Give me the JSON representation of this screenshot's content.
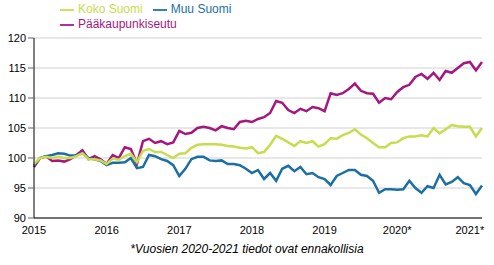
{
  "chart_data": {
    "type": "line",
    "note": "*Vuosien 2020-2021 tiedot ovat ennakollisia",
    "categories": [
      "2015",
      null,
      null,
      null,
      null,
      null,
      null,
      null,
      null,
      null,
      null,
      null,
      "2016",
      null,
      null,
      null,
      null,
      null,
      null,
      null,
      null,
      null,
      null,
      null,
      "2017",
      null,
      null,
      null,
      null,
      null,
      null,
      null,
      null,
      null,
      null,
      null,
      "2018",
      null,
      null,
      null,
      null,
      null,
      null,
      null,
      null,
      null,
      null,
      null,
      "2019",
      null,
      null,
      null,
      null,
      null,
      null,
      null,
      null,
      null,
      null,
      null,
      "2020*",
      null,
      null,
      null,
      null,
      null,
      null,
      null,
      null,
      null,
      null,
      null,
      "2021*",
      null,
      null
    ],
    "series": [
      {
        "name": "Pääkaupunkiseutu",
        "color": "#a6167f",
        "values": [
          98.5,
          100,
          100.3,
          99.5,
          99.6,
          99.4,
          99.8,
          100.5,
          101.3,
          99.8,
          100.3,
          99.8,
          99,
          100.5,
          100,
          101.8,
          101.5,
          99,
          102.8,
          103.2,
          102.5,
          102.8,
          102.3,
          102.6,
          104.5,
          104,
          104.2,
          105,
          105.2,
          105,
          104.6,
          105.3,
          105,
          104.8,
          106,
          106.2,
          106,
          106.5,
          106.8,
          107.5,
          109.5,
          109.2,
          108,
          107.5,
          108.2,
          107.8,
          108.5,
          108.3,
          107.8,
          110.8,
          110.5,
          110.8,
          111.5,
          112.4,
          111.2,
          110.8,
          110.7,
          109.2,
          110,
          109.8,
          111,
          111.8,
          112.2,
          113.5,
          114,
          113.2,
          114.2,
          113,
          114.5,
          114.2,
          115,
          115.8,
          116,
          114.6,
          116
        ]
      },
      {
        "name": "Muu Suomi",
        "color": "#1b6fa3",
        "values": [
          98.8,
          100,
          100.3,
          100.5,
          100.8,
          100.7,
          100.4,
          100.4,
          100.8,
          100,
          99.8,
          99.5,
          98.8,
          99.2,
          99.2,
          99.3,
          100,
          98.3,
          98.5,
          100.5,
          100.3,
          99.8,
          99.5,
          98.8,
          97,
          98.2,
          99.8,
          100.2,
          100.2,
          99.6,
          99.5,
          99.6,
          99,
          99,
          98.8,
          98.2,
          97.5,
          98,
          96.5,
          97.5,
          96.2,
          98.2,
          98.7,
          97.8,
          98.5,
          97.3,
          97.5,
          96.8,
          96.5,
          95.5,
          97,
          97.5,
          98,
          98,
          97.2,
          97,
          96.2,
          94.2,
          94.8,
          94.8,
          94.7,
          94.8,
          96.2,
          95,
          94.2,
          95.3,
          95,
          97.2,
          95.6,
          96,
          96.8,
          95.8,
          95.5,
          94,
          95.4
        ]
      },
      {
        "name": "Koko Suomi",
        "color": "#c8dc4e",
        "values": [
          99,
          100,
          100.2,
          100,
          100.2,
          100,
          100,
          100.3,
          100.8,
          99.8,
          99.8,
          99.6,
          99,
          99.9,
          99.7,
          100.3,
          100.7,
          99.3,
          101.2,
          101.5,
          101,
          101,
          100.5,
          100,
          100.7,
          100.8,
          101.7,
          102.2,
          102.3,
          102.3,
          102.3,
          102.2,
          102,
          101.9,
          101.7,
          101.6,
          101.8,
          100.8,
          101,
          102.2,
          103.7,
          103.2,
          102.6,
          102,
          102.8,
          102.5,
          102.8,
          101.9,
          102.3,
          103.3,
          103.2,
          103.8,
          104.2,
          104.8,
          103.9,
          103.3,
          102.5,
          101.8,
          101.8,
          102.5,
          102.6,
          103.3,
          103.6,
          103.6,
          103.8,
          103.6,
          105,
          104.1,
          104.8,
          105.5,
          105.3,
          105.2,
          105.2,
          103.6,
          105
        ]
      }
    ],
    "ylim": [
      90,
      120
    ],
    "yticks": [
      90,
      95,
      100,
      105,
      110,
      115,
      120
    ],
    "grid": true,
    "legend": "top"
  }
}
